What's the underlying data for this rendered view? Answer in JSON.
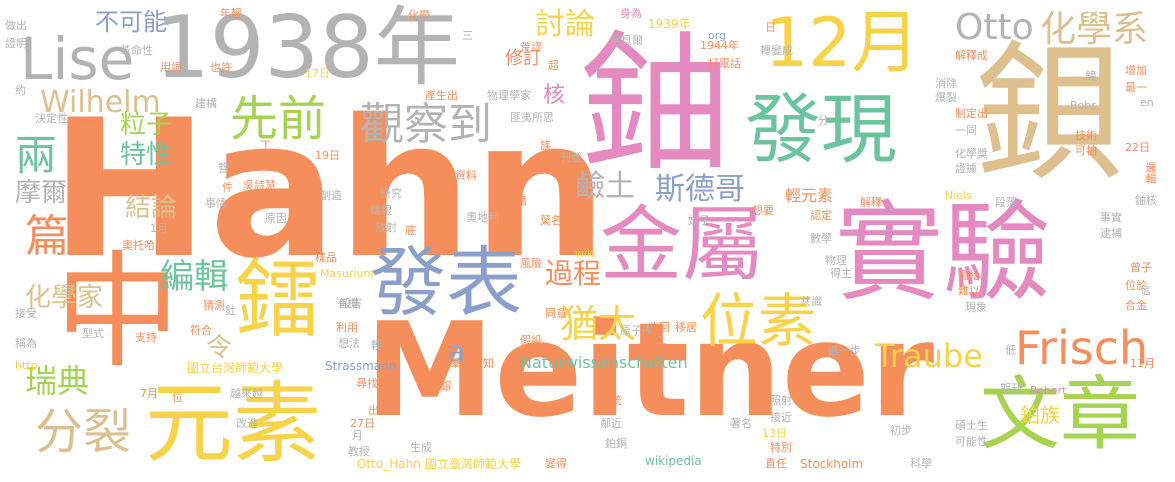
{
  "colors": {
    "orange": "#f58e5b",
    "pink": "#e48ac1",
    "gold": "#f8d247",
    "tan": "#ddc08e",
    "gray": "#b3b3b3",
    "green": "#6bc49e",
    "blue": "#8aa0cb",
    "lime": "#a6d44f"
  },
  "words": [
    {
      "text": "Hahn",
      "color": "orange"
    },
    {
      "text": "Meitner",
      "color": "orange"
    },
    {
      "text": "1938年",
      "color": "gray"
    },
    {
      "text": "鈾",
      "color": "pink"
    },
    {
      "text": "鋇",
      "color": "tan"
    },
    {
      "text": "實驗",
      "color": "pink"
    },
    {
      "text": "金屬",
      "color": "pink"
    },
    {
      "text": "發現",
      "color": "green"
    },
    {
      "text": "12月",
      "color": "gold"
    },
    {
      "text": "中",
      "color": "orange"
    },
    {
      "text": "元素",
      "color": "gold"
    },
    {
      "text": "鐳",
      "color": "gold"
    },
    {
      "text": "發表",
      "color": "blue"
    },
    {
      "text": "文章",
      "color": "lime"
    },
    {
      "text": "Lise",
      "color": "gray"
    },
    {
      "text": "位素",
      "color": "gold"
    },
    {
      "text": "先前",
      "color": "lime"
    },
    {
      "text": "觀察到",
      "color": "gray"
    },
    {
      "text": "分裂",
      "color": "tan"
    },
    {
      "text": "Frisch",
      "color": "orange"
    },
    {
      "text": "Otto",
      "color": "gray"
    },
    {
      "text": "化學系",
      "color": "tan"
    },
    {
      "text": "篇",
      "color": "orange"
    },
    {
      "text": "兩",
      "color": "green"
    },
    {
      "text": "猶太",
      "color": "gold"
    },
    {
      "text": "Traube",
      "color": "gold"
    },
    {
      "text": "討論",
      "color": "gold"
    },
    {
      "text": "Wilhelm",
      "color": "tan"
    },
    {
      "text": "斯德哥",
      "color": "blue"
    },
    {
      "text": "鹼土",
      "color": "gray"
    },
    {
      "text": "編輯",
      "color": "green"
    },
    {
      "text": "瑞典",
      "color": "lime"
    },
    {
      "text": "化學家",
      "color": "tan"
    },
    {
      "text": "過程",
      "color": "orange"
    },
    {
      "text": "不可能",
      "color": "blue"
    },
    {
      "text": "摩爾",
      "color": "gray"
    },
    {
      "text": "結論",
      "color": "tan"
    },
    {
      "text": "粒子",
      "color": "lime"
    },
    {
      "text": "特性",
      "color": "green"
    },
    {
      "text": "核",
      "color": "pink"
    },
    {
      "text": "修訂",
      "color": "orange"
    },
    {
      "text": "a",
      "color": "blue"
    },
    {
      "text": "令",
      "color": "tan"
    },
    {
      "text": "鉑族",
      "color": "gold"
    },
    {
      "text": "輕元素",
      "color": "orange"
    },
    {
      "text": "Naturwissenschaften",
      "color": "green"
    },
    {
      "text": "Strassmann",
      "color": "blue"
    },
    {
      "text": "Otto_Hahn",
      "color": "gold"
    },
    {
      "text": "國立台灣師範大學",
      "color": "gold"
    },
    {
      "text": "國立臺灣師範大學",
      "color": "gold"
    },
    {
      "text": "wikipedia",
      "color": "green"
    },
    {
      "text": "Stockholm",
      "color": "orange"
    },
    {
      "text": "1939年",
      "color": "gold"
    },
    {
      "text": "1944年",
      "color": "orange"
    },
    {
      "text": "諾貝爾",
      "color": "gray"
    },
    {
      "text": "轉變成",
      "color": "gray"
    },
    {
      "text": "解釋成",
      "color": "orange"
    },
    {
      "text": "化學",
      "color": "orange"
    },
    {
      "text": "身為",
      "color": "pink"
    },
    {
      "text": "年輕",
      "color": "orange"
    },
    {
      "text": "做出",
      "color": "gray"
    },
    {
      "text": "證明",
      "color": "gray"
    },
    {
      "text": "革命性",
      "color": "gray"
    },
    {
      "text": "用詞",
      "color": "orange"
    },
    {
      "text": "也許",
      "color": "orange"
    },
    {
      "text": "17日",
      "color": "gold"
    },
    {
      "text": "19日",
      "color": "orange"
    },
    {
      "text": "22日",
      "color": "orange"
    },
    {
      "text": "27日",
      "color": "orange"
    },
    {
      "text": "13日",
      "color": "gold"
    },
    {
      "text": "11月",
      "color": "orange"
    },
    {
      "text": "7月",
      "color": "orange"
    },
    {
      "text": "1月",
      "color": "gray"
    },
    {
      "text": "月",
      "color": "gray"
    },
    {
      "text": "日",
      "color": "orange"
    },
    {
      "text": "約",
      "color": "gray"
    },
    {
      "text": "決定性",
      "color": "gray"
    },
    {
      "text": "建構",
      "color": "gray"
    },
    {
      "text": "產生出",
      "color": "orange"
    },
    {
      "text": "物理學家",
      "color": "gray"
    },
    {
      "text": "荒謬",
      "color": "orange"
    },
    {
      "text": "超",
      "color": "orange"
    },
    {
      "text": "打電話",
      "color": "orange"
    },
    {
      "text": "org",
      "color": "blue"
    },
    {
      "text": "Bohr",
      "color": "gray"
    },
    {
      "text": "en",
      "color": "gray"
    },
    {
      "text": "增加",
      "color": "orange"
    },
    {
      "text": "最一",
      "color": "orange"
    },
    {
      "text": "鐘",
      "color": "gray"
    },
    {
      "text": "消除",
      "color": "gray"
    },
    {
      "text": "爆裂",
      "color": "gray"
    },
    {
      "text": "制定出",
      "color": "orange"
    },
    {
      "text": "一同",
      "color": "gray"
    },
    {
      "text": "化學獎",
      "color": "gray"
    },
    {
      "text": "證據",
      "color": "gray"
    },
    {
      "text": "技術",
      "color": "orange"
    },
    {
      "text": "可怕",
      "color": "orange"
    },
    {
      "text": "邏輯",
      "color": "orange"
    },
    {
      "text": "鈾核",
      "color": "gray"
    },
    {
      "text": "事實",
      "color": "gray"
    },
    {
      "text": "逮捕",
      "color": "gray"
    },
    {
      "text": "曾子",
      "color": "orange"
    },
    {
      "text": "位於",
      "color": "orange"
    },
    {
      "text": "合金",
      "color": "orange"
    },
    {
      "text": "信",
      "color": "gray"
    },
    {
      "text": "段落",
      "color": "gray"
    },
    {
      "text": "解釋",
      "color": "orange"
    },
    {
      "text": "Niels",
      "color": "gold"
    },
    {
      "text": "認定",
      "color": "orange"
    },
    {
      "text": "想要",
      "color": "orange"
    },
    {
      "text": "數學",
      "color": "gray"
    },
    {
      "text": "物理",
      "color": "gray"
    },
    {
      "text": "得主",
      "color": "gray"
    },
    {
      "text": "寫給",
      "color": "orange"
    },
    {
      "text": "難以",
      "color": "orange"
    },
    {
      "text": "現象",
      "color": "gray"
    },
    {
      "text": "共識",
      "color": "gray"
    },
    {
      "text": "進一步",
      "color": "gray"
    },
    {
      "text": "低",
      "color": "gray"
    },
    {
      "text": "期刊",
      "color": "gray"
    },
    {
      "text": "Robert",
      "color": "pink"
    },
    {
      "text": "碩士生",
      "color": "gray"
    },
    {
      "text": "可能性",
      "color": "gray"
    },
    {
      "text": "參考",
      "color": "orange"
    },
    {
      "text": "照射",
      "color": "gray"
    },
    {
      "text": "接近",
      "color": "gray"
    },
    {
      "text": "著名",
      "color": "gray"
    },
    {
      "text": "特別",
      "color": "orange"
    },
    {
      "text": "直任",
      "color": "orange"
    },
    {
      "text": "初步",
      "color": "gray"
    },
    {
      "text": "科學",
      "color": "gray"
    },
    {
      "text": "血統",
      "color": "orange"
    },
    {
      "text": "鄰近",
      "color": "gray"
    },
    {
      "text": "鉑銅",
      "color": "gray"
    },
    {
      "text": "變得",
      "color": "orange"
    },
    {
      "text": "原子序",
      "color": "gray"
    },
    {
      "text": "移居",
      "color": "orange"
    },
    {
      "text": "收回",
      "color": "orange"
    },
    {
      "text": "假設",
      "color": "orange"
    },
    {
      "text": "同意",
      "color": "orange"
    },
    {
      "text": "舉世皆知",
      "color": "orange"
    },
    {
      "text": "尋找",
      "color": "orange"
    },
    {
      "text": "鎔",
      "color": "orange"
    },
    {
      "text": "風險",
      "color": "orange"
    },
    {
      "text": "wiki",
      "color": "gold"
    },
    {
      "text": "提到",
      "color": "orange"
    },
    {
      "text": "葉名倉",
      "color": "orange"
    },
    {
      "text": "奧地利",
      "color": "gray"
    },
    {
      "text": "國籍",
      "color": "orange"
    },
    {
      "text": "姪子",
      "color": "gray"
    },
    {
      "text": "族",
      "color": "orange"
    },
    {
      "text": "刊登",
      "color": "gray"
    },
    {
      "text": "匪夷所思",
      "color": "gray"
    },
    {
      "text": "資料",
      "color": "orange"
    },
    {
      "text": "研究",
      "color": "gray"
    },
    {
      "text": "創造",
      "color": "gray"
    },
    {
      "text": "鐳銀",
      "color": "gray"
    },
    {
      "text": "放射",
      "color": "gray"
    },
    {
      "text": "底",
      "color": "orange"
    },
    {
      "text": "吳詩慧",
      "color": "orange"
    },
    {
      "text": "原因",
      "color": "gray"
    },
    {
      "text": "鹽",
      "color": "gray"
    },
    {
      "text": "件",
      "color": "orange"
    },
    {
      "text": "事情",
      "color": "gray"
    },
    {
      "text": "奧托哈恩",
      "color": "orange"
    },
    {
      "text": "樣品",
      "color": "orange"
    },
    {
      "text": "Masurium",
      "color": "gold"
    },
    {
      "text": "殺害",
      "color": "gray"
    },
    {
      "text": "有機",
      "color": "gray"
    },
    {
      "text": "猜測",
      "color": "orange"
    },
    {
      "text": "釷",
      "color": "gray"
    },
    {
      "text": "符合",
      "color": "orange"
    },
    {
      "text": "支持",
      "color": "orange"
    },
    {
      "text": "型式",
      "color": "gray"
    },
    {
      "text": "接受",
      "color": "gray"
    },
    {
      "text": "稱為",
      "color": "gray"
    },
    {
      "text": "http",
      "color": "gold"
    },
    {
      "text": "利用",
      "color": "orange"
    },
    {
      "text": "想法",
      "color": "gray"
    },
    {
      "text": "越來越",
      "color": "gray"
    },
    {
      "text": "改進",
      "color": "gray"
    },
    {
      "text": "位",
      "color": "orange"
    },
    {
      "text": "教授",
      "color": "gray"
    },
    {
      "text": "生成",
      "color": "gray"
    },
    {
      "text": "出",
      "color": "orange"
    },
    {
      "text": "分",
      "color": "gray"
    },
    {
      "text": "三",
      "color": "gray"
    },
    {
      "text": "二",
      "color": "gray"
    },
    {
      "text": "輕",
      "color": "gray"
    },
    {
      "text": "丁",
      "color": "orange"
    }
  ]
}
